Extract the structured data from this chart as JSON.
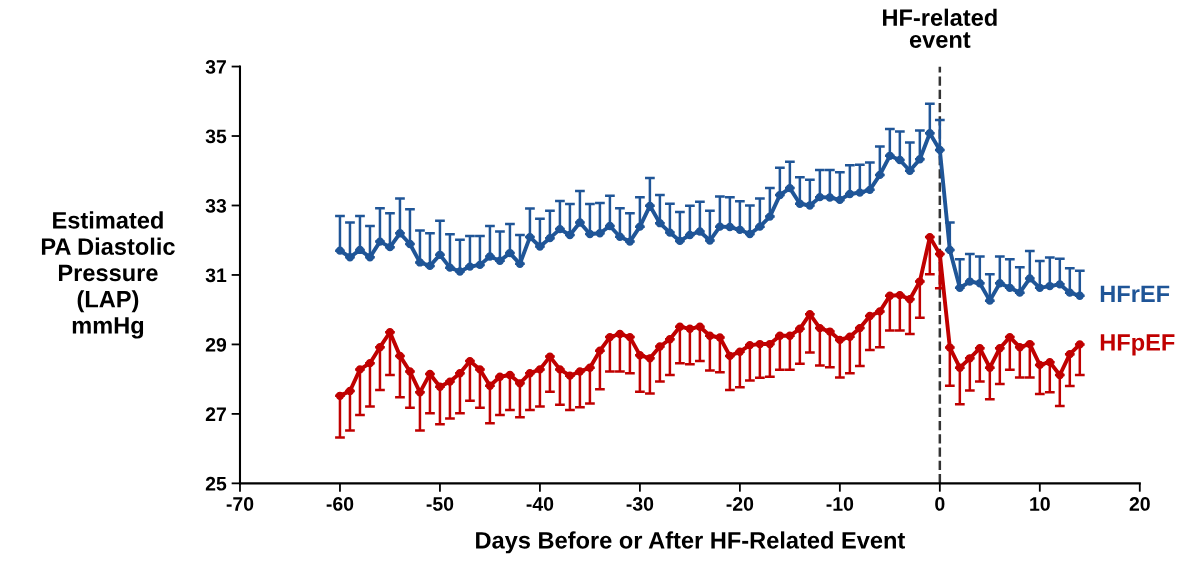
{
  "chart_data": {
    "type": "line",
    "xlabel": "Days Before or After HF-Related Event",
    "ylabel": "Estimated\nPA Diastolic\nPressure\n(LAP)\nmmHg",
    "x": [
      -60,
      -59,
      -58,
      -57,
      -56,
      -55,
      -54,
      -53,
      -52,
      -51,
      -50,
      -49,
      -48,
      -47,
      -46,
      -45,
      -44,
      -43,
      -42,
      -41,
      -40,
      -39,
      -38,
      -37,
      -36,
      -35,
      -34,
      -33,
      -32,
      -31,
      -30,
      -29,
      -28,
      -27,
      -26,
      -25,
      -24,
      -23,
      -22,
      -21,
      -20,
      -19,
      -18,
      -17,
      -16,
      -15,
      -14,
      -13,
      -12,
      -11,
      -10,
      -9,
      -8,
      -7,
      -6,
      -5,
      -4,
      -3,
      -2,
      -1,
      0,
      1,
      2,
      3,
      4,
      5,
      6,
      7,
      8,
      9,
      10,
      11,
      12,
      13,
      14
    ],
    "series": [
      {
        "name": "HFrEF",
        "color": "#1f5597",
        "values": [
          31.7,
          31.51,
          31.72,
          31.51,
          31.96,
          31.8,
          32.2,
          31.89,
          31.36,
          31.26,
          31.58,
          31.21,
          31.1,
          31.24,
          31.29,
          31.53,
          31.41,
          31.63,
          31.32,
          32.09,
          31.82,
          32.06,
          32.32,
          32.15,
          32.51,
          32.18,
          32.2,
          32.41,
          32.1,
          31.96,
          32.39,
          32.99,
          32.49,
          32.22,
          31.98,
          32.15,
          32.25,
          31.99,
          32.39,
          32.38,
          32.3,
          32.18,
          32.39,
          32.68,
          33.3,
          33.5,
          33.05,
          33.0,
          33.24,
          33.23,
          33.16,
          33.33,
          33.37,
          33.45,
          33.88,
          34.43,
          34.31,
          34.0,
          34.33,
          35.08,
          34.6,
          31.72,
          30.63,
          30.81,
          30.76,
          30.26,
          30.76,
          30.63,
          30.49,
          30.9,
          30.63,
          30.68,
          30.73,
          30.49,
          30.4
        ],
        "errors": [
          [
            31.7,
            32.7
          ],
          [
            31.51,
            32.51
          ],
          [
            31.72,
            32.7
          ],
          [
            31.51,
            32.41
          ],
          [
            31.96,
            32.92
          ],
          [
            31.8,
            32.78
          ],
          [
            32.2,
            33.2
          ],
          [
            31.89,
            32.89
          ],
          [
            31.36,
            32.28
          ],
          [
            31.26,
            32.2
          ],
          [
            31.58,
            32.56
          ],
          [
            31.21,
            32.17
          ],
          [
            31.1,
            32.01
          ],
          [
            31.24,
            32.12
          ],
          [
            31.29,
            32.12
          ],
          [
            31.53,
            32.41
          ],
          [
            31.41,
            32.25
          ],
          [
            31.63,
            32.47
          ],
          [
            31.32,
            32.15
          ],
          [
            32.09,
            32.91
          ],
          [
            31.82,
            32.62
          ],
          [
            32.06,
            32.85
          ],
          [
            32.32,
            33.13
          ],
          [
            32.15,
            33.04
          ],
          [
            32.51,
            33.42
          ],
          [
            32.18,
            33.04
          ],
          [
            32.2,
            33.07
          ],
          [
            32.41,
            33.28
          ],
          [
            32.1,
            32.92
          ],
          [
            31.96,
            32.78
          ],
          [
            32.39,
            33.24
          ],
          [
            32.99,
            33.79
          ],
          [
            32.49,
            33.3
          ],
          [
            32.22,
            33.05
          ],
          [
            31.98,
            32.81
          ],
          [
            32.15,
            32.99
          ],
          [
            32.25,
            33.11
          ],
          [
            31.99,
            32.85
          ],
          [
            32.39,
            33.26
          ],
          [
            32.38,
            33.24
          ],
          [
            32.3,
            33.12
          ],
          [
            32.18,
            33.0
          ],
          [
            32.39,
            33.2
          ],
          [
            32.68,
            33.5
          ],
          [
            33.3,
            34.09
          ],
          [
            33.5,
            34.26
          ],
          [
            33.05,
            33.81
          ],
          [
            33.0,
            33.74
          ],
          [
            33.24,
            34.02
          ],
          [
            33.23,
            34.02
          ],
          [
            33.16,
            33.96
          ],
          [
            33.33,
            34.16
          ],
          [
            33.37,
            34.17
          ],
          [
            33.45,
            34.24
          ],
          [
            33.88,
            34.7
          ],
          [
            34.43,
            35.2
          ],
          [
            34.31,
            35.13
          ],
          [
            34.0,
            34.81
          ],
          [
            34.33,
            35.16
          ],
          [
            35.08,
            35.93
          ],
          [
            34.6,
            35.46
          ],
          [
            31.72,
            32.51
          ],
          [
            30.63,
            31.45
          ],
          [
            30.81,
            31.6
          ],
          [
            30.76,
            31.53
          ],
          [
            30.26,
            31.02
          ],
          [
            30.76,
            31.53
          ],
          [
            30.63,
            31.45
          ],
          [
            30.49,
            31.22
          ],
          [
            30.9,
            31.69
          ],
          [
            30.63,
            31.4
          ],
          [
            30.68,
            31.5
          ],
          [
            30.73,
            31.47
          ],
          [
            30.49,
            31.19
          ],
          [
            30.4,
            31.12
          ]
        ]
      },
      {
        "name": "HFpEF",
        "color": "#c00000",
        "values": [
          27.52,
          27.66,
          28.28,
          28.46,
          28.92,
          29.35,
          28.67,
          28.22,
          27.62,
          28.15,
          27.78,
          27.93,
          28.17,
          28.52,
          28.28,
          27.81,
          28.07,
          28.12,
          27.88,
          28.17,
          28.28,
          28.65,
          28.28,
          28.1,
          28.22,
          28.33,
          28.82,
          29.21,
          29.3,
          29.21,
          28.69,
          28.6,
          28.94,
          29.15,
          29.51,
          29.45,
          29.51,
          29.25,
          29.2,
          28.67,
          28.79,
          28.98,
          29.01,
          29.01,
          29.25,
          29.25,
          29.45,
          29.87,
          29.47,
          29.37,
          29.13,
          29.22,
          29.47,
          29.82,
          29.95,
          30.4,
          30.42,
          30.3,
          30.81,
          32.09,
          31.6,
          28.91,
          28.33,
          28.6,
          28.89,
          28.33,
          28.89,
          29.21,
          28.92,
          29.01,
          28.41,
          28.49,
          28.12,
          28.72,
          29.0
        ],
        "errors": [
          [
            26.32,
            27.52
          ],
          [
            26.52,
            27.66
          ],
          [
            26.97,
            28.28
          ],
          [
            27.21,
            28.46
          ],
          [
            27.69,
            28.92
          ],
          [
            28.12,
            29.35
          ],
          [
            27.48,
            28.67
          ],
          [
            27.18,
            28.22
          ],
          [
            26.52,
            27.62
          ],
          [
            27.02,
            28.15
          ],
          [
            26.7,
            27.78
          ],
          [
            26.87,
            27.93
          ],
          [
            27.02,
            28.17
          ],
          [
            27.38,
            28.52
          ],
          [
            27.18,
            28.28
          ],
          [
            26.73,
            27.81
          ],
          [
            26.97,
            28.07
          ],
          [
            27.11,
            28.12
          ],
          [
            26.9,
            27.88
          ],
          [
            27.11,
            28.17
          ],
          [
            27.21,
            28.28
          ],
          [
            27.64,
            28.65
          ],
          [
            27.26,
            28.28
          ],
          [
            27.11,
            28.1
          ],
          [
            27.19,
            28.22
          ],
          [
            27.3,
            28.33
          ],
          [
            27.71,
            28.82
          ],
          [
            28.22,
            29.21
          ],
          [
            28.22,
            29.3
          ],
          [
            28.17,
            29.21
          ],
          [
            27.64,
            28.69
          ],
          [
            27.59,
            28.6
          ],
          [
            27.93,
            28.94
          ],
          [
            28.12,
            29.15
          ],
          [
            28.46,
            29.51
          ],
          [
            28.43,
            29.45
          ],
          [
            28.52,
            29.51
          ],
          [
            28.25,
            29.25
          ],
          [
            28.2,
            29.2
          ],
          [
            27.69,
            28.67
          ],
          [
            27.77,
            28.79
          ],
          [
            27.96,
            28.98
          ],
          [
            28.04,
            29.01
          ],
          [
            28.07,
            29.01
          ],
          [
            28.27,
            29.25
          ],
          [
            28.27,
            29.25
          ],
          [
            28.44,
            29.45
          ],
          [
            28.77,
            29.87
          ],
          [
            28.39,
            29.47
          ],
          [
            28.34,
            29.37
          ],
          [
            28.05,
            29.13
          ],
          [
            28.17,
            29.22
          ],
          [
            28.38,
            29.47
          ],
          [
            28.84,
            29.82
          ],
          [
            28.92,
            29.95
          ],
          [
            29.4,
            30.4
          ],
          [
            29.4,
            30.42
          ],
          [
            29.3,
            30.3
          ],
          [
            29.77,
            30.81
          ],
          [
            31.02,
            32.09
          ],
          [
            30.62,
            31.6
          ],
          [
            27.81,
            28.91
          ],
          [
            27.28,
            28.33
          ],
          [
            27.67,
            28.6
          ],
          [
            27.93,
            28.89
          ],
          [
            27.42,
            28.33
          ],
          [
            27.86,
            28.89
          ],
          [
            28.27,
            29.21
          ],
          [
            28.05,
            28.92
          ],
          [
            28.05,
            29.01
          ],
          [
            27.57,
            28.41
          ],
          [
            27.62,
            28.49
          ],
          [
            27.23,
            28.12
          ],
          [
            27.8,
            28.72
          ],
          [
            28.12,
            29.0
          ]
        ]
      }
    ],
    "xlim": [
      -70,
      20
    ],
    "xticks": [
      -70,
      -60,
      -50,
      -40,
      -30,
      -20,
      -10,
      0,
      10,
      20
    ],
    "ylim": [
      25,
      37
    ],
    "yticks": [
      25,
      27,
      29,
      31,
      33,
      35,
      37
    ],
    "ref_lines": [
      {
        "axis": "x",
        "value": 0,
        "label": "HF-related\nevent",
        "color": "#333333",
        "line_style": "dashed"
      }
    ],
    "marker": "circle",
    "line_style": "solid",
    "grid": false,
    "legend": false
  }
}
